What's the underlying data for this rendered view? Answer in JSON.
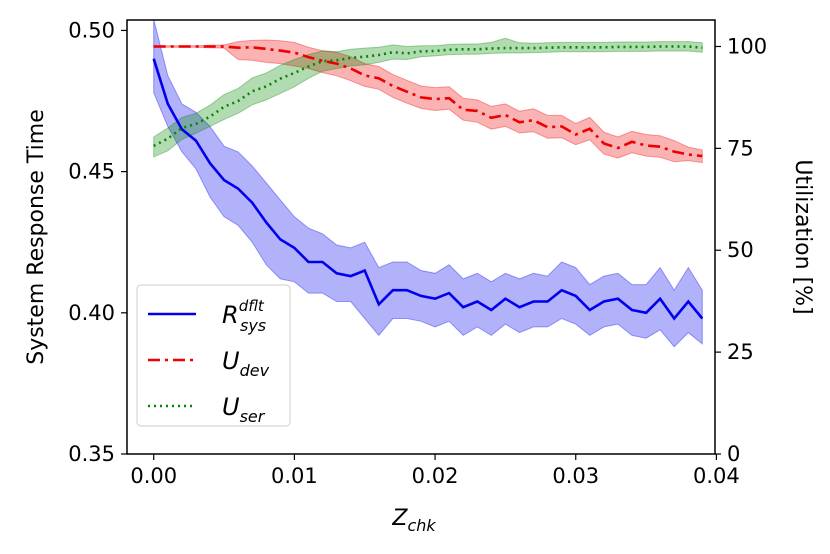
{
  "chart_data": {
    "type": "line",
    "xlabel_main": "Z",
    "xlabel_sub": "chk",
    "ylabel": "System Response Time",
    "y2label": "Utilization [%]",
    "xlim": [
      -0.0019,
      0.0399
    ],
    "ylim": [
      0.35,
      0.5037
    ],
    "y2lim": [
      0,
      106.5
    ],
    "x_ticks": [
      "0.00",
      "0.01",
      "0.02",
      "0.03",
      "0.04"
    ],
    "y_ticks": [
      "0.35",
      "0.40",
      "0.45",
      "0.50"
    ],
    "y2_ticks": [
      "0",
      "25",
      "50",
      "75",
      "100"
    ],
    "legend_position": "lower-left",
    "x": [
      0.0,
      0.001,
      0.002,
      0.003,
      0.004,
      0.005,
      0.006,
      0.007,
      0.008,
      0.009,
      0.01,
      0.011,
      0.012,
      0.013,
      0.014,
      0.015,
      0.016,
      0.017,
      0.018,
      0.019,
      0.02,
      0.021,
      0.022,
      0.023,
      0.024,
      0.025,
      0.026,
      0.027,
      0.028,
      0.029,
      0.03,
      0.031,
      0.032,
      0.033,
      0.034,
      0.035,
      0.036,
      0.037,
      0.038,
      0.039
    ],
    "series": [
      {
        "name": "R",
        "name_sup": "dflt",
        "name_sub": "sys",
        "axis": "left",
        "color": "#0000ee",
        "style": "solid",
        "values": [
          0.49,
          0.474,
          0.465,
          0.461,
          0.453,
          0.447,
          0.444,
          0.439,
          0.432,
          0.426,
          0.423,
          0.418,
          0.418,
          0.414,
          0.413,
          0.415,
          0.403,
          0.408,
          0.408,
          0.406,
          0.405,
          0.407,
          0.402,
          0.404,
          0.401,
          0.405,
          0.402,
          0.404,
          0.404,
          0.408,
          0.406,
          0.401,
          0.404,
          0.405,
          0.401,
          0.4,
          0.405,
          0.398,
          0.404,
          0.398
        ],
        "lower": [
          0.478,
          0.466,
          0.457,
          0.451,
          0.441,
          0.434,
          0.431,
          0.425,
          0.417,
          0.412,
          0.411,
          0.407,
          0.407,
          0.404,
          0.404,
          0.398,
          0.392,
          0.398,
          0.398,
          0.397,
          0.395,
          0.397,
          0.392,
          0.395,
          0.392,
          0.396,
          0.393,
          0.395,
          0.395,
          0.398,
          0.396,
          0.392,
          0.395,
          0.396,
          0.392,
          0.391,
          0.394,
          0.388,
          0.393,
          0.389
        ],
        "upper": [
          0.504,
          0.484,
          0.474,
          0.471,
          0.466,
          0.459,
          0.457,
          0.452,
          0.446,
          0.44,
          0.434,
          0.43,
          0.428,
          0.424,
          0.423,
          0.425,
          0.416,
          0.418,
          0.418,
          0.415,
          0.414,
          0.417,
          0.412,
          0.414,
          0.411,
          0.414,
          0.412,
          0.414,
          0.413,
          0.418,
          0.416,
          0.41,
          0.413,
          0.414,
          0.41,
          0.41,
          0.416,
          0.408,
          0.416,
          0.408
        ]
      },
      {
        "name": "U",
        "name_sub": "dev",
        "axis": "right",
        "color": "#ee0000",
        "style": "dashdot",
        "values": [
          100.0,
          100.0,
          100.0,
          100.0,
          100.0,
          100.0,
          99.7,
          99.8,
          99.4,
          99.0,
          98.5,
          97.4,
          96.5,
          95.8,
          94.6,
          92.9,
          92.2,
          90.3,
          88.9,
          87.5,
          87.1,
          87.3,
          84.5,
          84.2,
          82.5,
          83.2,
          81.4,
          81.9,
          80.2,
          80.4,
          78.4,
          79.8,
          76.2,
          75.1,
          76.6,
          75.7,
          75.4,
          74.2,
          73.5,
          73.1
        ],
        "lower": [
          99.8,
          99.8,
          99.8,
          99.8,
          99.7,
          99.6,
          96.8,
          96.6,
          96.1,
          95.8,
          95.2,
          94.6,
          93.6,
          92.8,
          91.6,
          90.2,
          89.5,
          87.5,
          86.1,
          84.8,
          84.3,
          84.6,
          81.9,
          81.4,
          79.7,
          80.4,
          78.8,
          79.1,
          77.5,
          77.6,
          75.9,
          77.1,
          73.6,
          72.6,
          73.9,
          73.1,
          72.8,
          71.7,
          72.0,
          71.5
        ],
        "upper": [
          100.2,
          100.2,
          100.2,
          100.2,
          100.3,
          100.4,
          101.2,
          101.5,
          101.6,
          101.4,
          101.0,
          99.8,
          99.0,
          98.6,
          97.5,
          95.8,
          95.1,
          93.1,
          91.7,
          90.3,
          89.9,
          90.1,
          87.3,
          86.9,
          85.3,
          85.9,
          84.1,
          84.7,
          83.1,
          83.1,
          81.1,
          82.6,
          79.0,
          77.8,
          79.2,
          78.4,
          78.1,
          76.9,
          75.3,
          74.6
        ]
      },
      {
        "name": "U",
        "name_sub": "ser",
        "axis": "right",
        "color": "#008800",
        "style": "dotted",
        "values": [
          75.6,
          77.4,
          80.0,
          81.0,
          82.8,
          85.2,
          86.6,
          89.0,
          90.2,
          92.1,
          93.5,
          95.1,
          96.4,
          96.6,
          97.2,
          97.5,
          97.9,
          98.6,
          98.3,
          98.8,
          98.9,
          99.2,
          99.3,
          99.3,
          99.5,
          99.6,
          99.6,
          99.6,
          99.7,
          99.8,
          99.8,
          99.8,
          99.8,
          99.9,
          99.9,
          99.9,
          100.0,
          100.0,
          100.0,
          99.7
        ],
        "lower": [
          72.9,
          74.4,
          77.2,
          78.7,
          80.4,
          82.1,
          83.6,
          85.7,
          86.9,
          88.5,
          90.1,
          92.2,
          93.9,
          94.6,
          95.2,
          95.5,
          96.1,
          96.9,
          96.8,
          97.5,
          97.7,
          98.0,
          98.1,
          98.1,
          98.3,
          98.4,
          98.4,
          98.5,
          98.6,
          98.7,
          98.7,
          98.7,
          98.7,
          98.8,
          98.8,
          98.8,
          98.9,
          98.9,
          98.9,
          98.6
        ],
        "upper": [
          77.8,
          80.0,
          82.6,
          83.6,
          85.6,
          88.2,
          89.7,
          92.3,
          93.5,
          95.4,
          96.8,
          98.0,
          98.9,
          98.7,
          99.3,
          99.6,
          99.8,
          100.4,
          100.0,
          100.2,
          100.2,
          100.5,
          100.6,
          100.6,
          101.0,
          102.0,
          100.9,
          100.8,
          100.9,
          101.0,
          101.0,
          101.0,
          101.0,
          101.1,
          101.1,
          101.1,
          101.2,
          101.2,
          101.2,
          100.9
        ]
      }
    ]
  }
}
